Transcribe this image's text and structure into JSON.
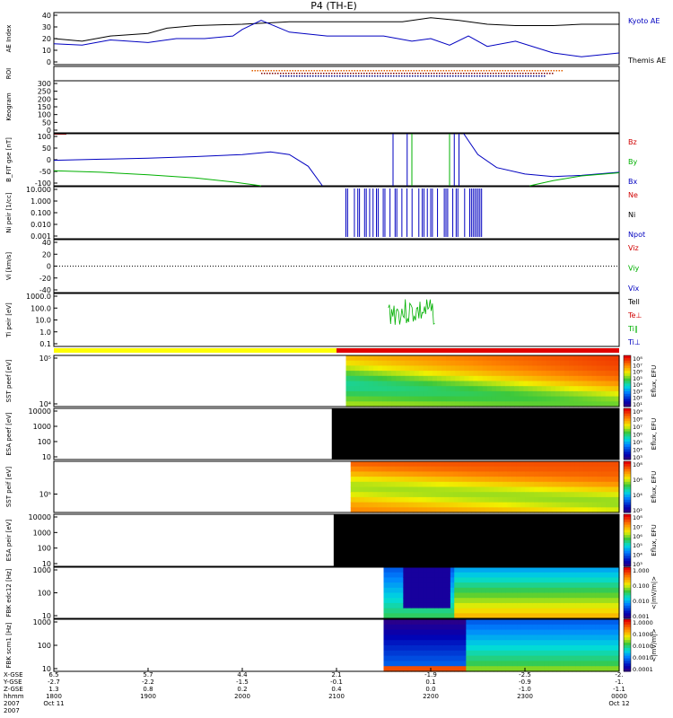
{
  "chart_data": {
    "type": "stacked-timeseries",
    "title": "P4 (TH-E)",
    "date_start": "Oct 11",
    "date_end": "Oct 12",
    "year": "2007",
    "colors": {
      "kyoto": "#0000ff",
      "themis": "#000000",
      "bz": "#ff0000",
      "by": "#00c000",
      "bx": "#0000ff",
      "roi_yellow": "#ffff00",
      "roi_red": "#e00000"
    },
    "xaxis": {
      "row_labels": [
        "X-GSE",
        "Y-GSE",
        "Z-GSE",
        "hhmm",
        "2007"
      ],
      "ticks": [
        {
          "x": "6.5",
          "y": "-2.7",
          "z": "1.3",
          "t": "1800",
          "d": "Oct 11"
        },
        {
          "x": "5.7",
          "y": "-2.2",
          "z": "0.8",
          "t": "1900",
          "d": ""
        },
        {
          "x": "4.4",
          "y": "-1.5",
          "z": "0.2",
          "t": "2000",
          "d": ""
        },
        {
          "x": "2.1",
          "y": "-0.1",
          "z": "0.4",
          "t": "2100",
          "d": ""
        },
        {
          "x": "-1.9",
          "y": "0.1",
          "z": "0.0",
          "t": "2200",
          "d": ""
        },
        {
          "x": "-2.5",
          "y": "-0.9",
          "z": "-1.0",
          "t": "2300",
          "d": ""
        },
        {
          "x": "-2.",
          "y": "-1.",
          "z": "-1.1",
          "t": "0000",
          "d": "Oct 12"
        }
      ],
      "range_hours": [
        18,
        24
      ]
    },
    "panels": [
      {
        "id": "ae",
        "ylabel": "AE Index",
        "yticks": [
          "40",
          "30",
          "20",
          "10",
          "0"
        ],
        "ylim": [
          0,
          40
        ],
        "legend": [
          "Kyoto AE",
          "Themis AE"
        ],
        "series": [
          {
            "name": "Themis AE",
            "t": [
              18.0,
              18.3,
              18.6,
              19.0,
              19.2,
              19.5,
              20.0,
              20.5,
              20.9,
              21.3,
              21.7,
              22.0,
              22.3,
              22.6,
              22.9,
              23.3,
              23.6,
              24.0
            ],
            "v": [
              20,
              18,
              22,
              24,
              28,
              30,
              31,
              33,
              33,
              33,
              33,
              36,
              34,
              31,
              30,
              30,
              31,
              31
            ]
          },
          {
            "name": "Kyoto AE",
            "t": [
              18.0,
              18.3,
              18.6,
              19.0,
              19.3,
              19.6,
              19.9,
              20.0,
              20.2,
              20.5,
              20.9,
              21.2,
              21.5,
              21.8,
              22.0,
              22.2,
              22.4,
              22.6,
              22.9,
              23.3,
              23.6,
              24.0
            ],
            "v": [
              16,
              15,
              19,
              17,
              20,
              20,
              22,
              27,
              34,
              25,
              22,
              22,
              22,
              18,
              20,
              15,
              22,
              14,
              18,
              9,
              6,
              9
            ]
          }
        ]
      },
      {
        "id": "roi",
        "ylabel": "ROI",
        "yticks": []
      },
      {
        "id": "keogram",
        "ylabel": "Keogram",
        "yticks": [
          "300",
          "250",
          "200",
          "150",
          "100",
          "50",
          "0"
        ]
      },
      {
        "id": "bfit",
        "ylabel": "B_FIT gse [nT]",
        "yticks": [
          "100",
          "50",
          "0",
          "-50",
          "-100"
        ],
        "ylim": [
          -100,
          100
        ],
        "legend": [
          "Bz",
          "By",
          "Bx"
        ],
        "series": [
          {
            "name": "Bx",
            "t": [
              18.0,
              18.5,
              19.0,
              19.5,
              20.0,
              20.3,
              20.5,
              20.7,
              20.85
            ],
            "v": [
              -2,
              2,
              6,
              12,
              20,
              30,
              20,
              -25,
              -100
            ]
          },
          {
            "name": "By",
            "t": [
              18.0,
              18.5,
              19.0,
              19.5,
              19.9,
              20.2
            ],
            "v": [
              -42,
              -48,
              -58,
              -70,
              -85,
              -100
            ]
          },
          {
            "name": "Bx-late",
            "t": [
              22.35,
              22.5,
              22.7,
              23.0,
              23.3,
              23.6,
              24.0
            ],
            "v": [
              100,
              20,
              -30,
              -55,
              -65,
              -60,
              -48
            ]
          },
          {
            "name": "By-late",
            "t": [
              23.05,
              23.3,
              23.6,
              24.0
            ],
            "v": [
              -100,
              -80,
              -62,
              -50
            ]
          }
        ]
      },
      {
        "id": "ni",
        "ylabel": "Ni peir [1/cc]",
        "yticks": [
          "10.000",
          "1.000",
          "0.100",
          "0.010",
          "0.001"
        ],
        "legend": [
          "Ne",
          "Ni",
          "Npot"
        ]
      },
      {
        "id": "vi",
        "ylabel": "Vi [km/s]",
        "yticks": [
          "40",
          "20",
          "0",
          "-20",
          "-40"
        ],
        "legend": [
          "Viz",
          "Viy",
          "Vix"
        ]
      },
      {
        "id": "ti",
        "ylabel": "Ti peir [eV]",
        "yticks": [
          "1000.0",
          "100.0",
          "10.0",
          "1.0",
          "0.1"
        ],
        "legend": [
          "Tell",
          "Te⊥",
          "Ti∥",
          "Ti⊥"
        ]
      },
      {
        "id": "sst_e",
        "ylabel": "SST peef [eV]",
        "yticks": [
          "10⁵",
          "10⁴"
        ],
        "colorbar_label": "Eflux, EFU",
        "colorbar_ticks": [
          "10⁸",
          "10⁷",
          "10⁶",
          "10⁵",
          "10⁴",
          "10³",
          "10²",
          "10¹"
        ]
      },
      {
        "id": "esa_e",
        "ylabel": "ESA peef [eV]",
        "yticks": [
          "10000",
          "1000",
          "100",
          "10"
        ],
        "colorbar_label": "Eflux, EFU",
        "colorbar_ticks": [
          "10⁹",
          "10⁸",
          "10⁷",
          "10⁶",
          "10⁵",
          "10⁴",
          "10³"
        ]
      },
      {
        "id": "sst_i",
        "ylabel": "SST peif [eV]",
        "yticks": [
          "10⁵"
        ],
        "colorbar_label": "Eflux, EFU",
        "colorbar_ticks": [
          "10⁸",
          "10⁶",
          "10⁴",
          "10²"
        ]
      },
      {
        "id": "esa_i",
        "ylabel": "ESA peir [eV]",
        "yticks": [
          "10000",
          "1000",
          "100",
          "10"
        ],
        "colorbar_label": "Eflux, EFU",
        "colorbar_ticks": [
          "10⁸",
          "10⁷",
          "10⁶",
          "10⁵",
          "10⁴",
          "10³"
        ]
      },
      {
        "id": "fbk_e",
        "ylabel": "FBK edc12 [Hz]",
        "yticks": [
          "1000",
          "100",
          "10"
        ],
        "colorbar_label": "<|mV/m|>",
        "colorbar_ticks": [
          "1.000",
          "0.100",
          "0.010",
          "0.001"
        ]
      },
      {
        "id": "fbk_b",
        "ylabel": "FBK scm1 [Hz]",
        "yticks": [
          "1000",
          "100",
          "10"
        ],
        "colorbar_label": "<|mV/m|>",
        "colorbar_ticks": [
          "1.0000",
          "0.1000",
          "0.0100",
          "0.0010",
          "0.0001"
        ]
      }
    ]
  }
}
